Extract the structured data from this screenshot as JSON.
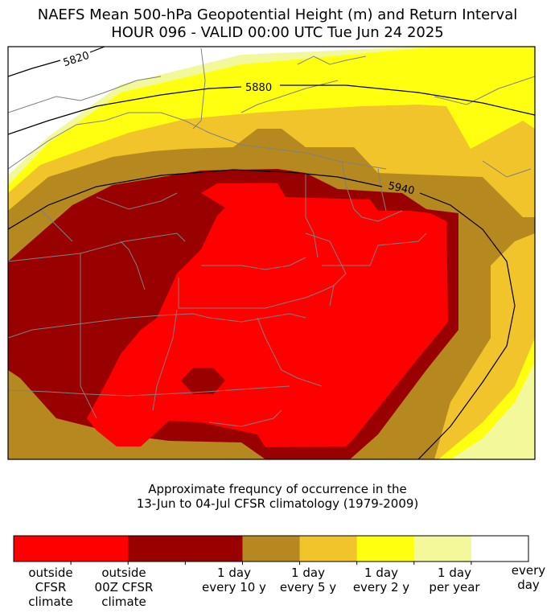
{
  "title_line1": "NAEFS Mean 500-hPa Geopotential Height (m) and Return Interval",
  "title_line2": "HOUR 096 - VALID 00:00 UTC Tue Jun 24 2025",
  "contours": [
    {
      "label": "5820"
    },
    {
      "label": "5880"
    },
    {
      "label": "5940"
    }
  ],
  "subtitle_line1": "Approximate frequncy of occurrence in the",
  "subtitle_line2": "13-Jun to 04-Jul CFSR climatology (1979-2009)",
  "legend": {
    "colors": [
      "#ff0000",
      "#ff0000",
      "#990000",
      "#990000",
      "#b5891f",
      "#f0c42a",
      "#ffff10",
      "#f3f99a",
      "#ffffff"
    ],
    "labels": [
      {
        "text": "outside\nCFSR\nclimate"
      },
      {
        "text": "outside\n00Z CFSR\nclimate"
      },
      {
        "text": "1 day\nevery 10 y"
      },
      {
        "text": "1 day\nevery 5 y"
      },
      {
        "text": "1 day\nevery 2 y"
      },
      {
        "text": "1 day\nper year"
      },
      {
        "text": "every\nday"
      }
    ]
  },
  "map_colors": {
    "outside_cfsr": "#ff0000",
    "outside_00z": "#990000",
    "every_10y": "#b5891f",
    "every_5y": "#f0c42a",
    "every_2y": "#ffff10",
    "per_year": "#f3f99a",
    "every_day": "#ffffff",
    "borders": "#808080",
    "contour": "#000000"
  }
}
